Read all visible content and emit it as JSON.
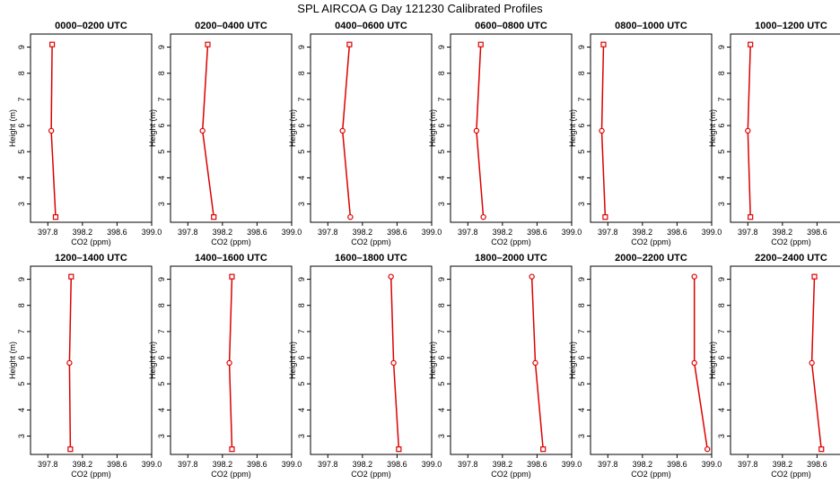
{
  "figure": {
    "title": "SPL AIRCOA G  Day 121230  Calibrated Profiles"
  },
  "chart_data": [
    {
      "type": "line",
      "title": "0000–0200 UTC",
      "xlabel": "CO2 (ppm)",
      "ylabel": "Height (m)",
      "xlim": [
        397.6,
        399.0
      ],
      "ylim": [
        2.3,
        9.5
      ],
      "xticks": [
        "397.8",
        "398.2",
        "398.6",
        "399.0"
      ],
      "yticks": [
        "3",
        "4",
        "5",
        "6",
        "7",
        "8",
        "9"
      ],
      "y": [
        2.5,
        5.8,
        9.1
      ],
      "x": [
        397.89,
        397.84,
        397.85
      ],
      "markers": [
        "square",
        "circle",
        "square"
      ],
      "color": "#dd0000",
      "grid": false
    },
    {
      "type": "line",
      "title": "0200–0400 UTC",
      "xlabel": "CO2 (ppm)",
      "ylabel": "Height (m)",
      "xlim": [
        397.6,
        399.0
      ],
      "ylim": [
        2.3,
        9.5
      ],
      "xticks": [
        "397.8",
        "398.2",
        "398.6",
        "399.0"
      ],
      "yticks": [
        "3",
        "4",
        "5",
        "6",
        "7",
        "8",
        "9"
      ],
      "y": [
        2.5,
        5.8,
        9.1
      ],
      "x": [
        398.1,
        397.97,
        398.03
      ],
      "markers": [
        "square",
        "circle",
        "square"
      ],
      "color": "#dd0000",
      "grid": false
    },
    {
      "type": "line",
      "title": "0400–0600 UTC",
      "xlabel": "CO2 (ppm)",
      "ylabel": "Height (m)",
      "xlim": [
        397.6,
        399.0
      ],
      "ylim": [
        2.3,
        9.5
      ],
      "xticks": [
        "397.8",
        "398.2",
        "398.6",
        "399.0"
      ],
      "yticks": [
        "3",
        "4",
        "5",
        "6",
        "7",
        "8",
        "9"
      ],
      "y": [
        2.5,
        5.8,
        9.1
      ],
      "x": [
        398.06,
        397.97,
        398.05
      ],
      "markers": [
        "circle",
        "circle",
        "square"
      ],
      "color": "#dd0000",
      "grid": false
    },
    {
      "type": "line",
      "title": "0600–0800 UTC",
      "xlabel": "CO2 (ppm)",
      "ylabel": "Height (m)",
      "xlim": [
        397.6,
        399.0
      ],
      "ylim": [
        2.3,
        9.5
      ],
      "xticks": [
        "397.8",
        "398.2",
        "398.6",
        "399.0"
      ],
      "yticks": [
        "3",
        "4",
        "5",
        "6",
        "7",
        "8",
        "9"
      ],
      "y": [
        2.5,
        5.8,
        9.1
      ],
      "x": [
        397.98,
        397.9,
        397.95
      ],
      "markers": [
        "circle",
        "circle",
        "square"
      ],
      "color": "#dd0000",
      "grid": false
    },
    {
      "type": "line",
      "title": "0800–1000 UTC",
      "xlabel": "CO2 (ppm)",
      "ylabel": "Height (m)",
      "xlim": [
        397.6,
        399.0
      ],
      "ylim": [
        2.3,
        9.5
      ],
      "xticks": [
        "397.8",
        "398.2",
        "398.6",
        "399.0"
      ],
      "yticks": [
        "3",
        "4",
        "5",
        "6",
        "7",
        "8",
        "9"
      ],
      "y": [
        2.5,
        5.8,
        9.1
      ],
      "x": [
        397.77,
        397.73,
        397.75
      ],
      "markers": [
        "square",
        "circle",
        "square"
      ],
      "color": "#dd0000",
      "grid": false
    },
    {
      "type": "line",
      "title": "1000–1200 UTC",
      "xlabel": "CO2 (ppm)",
      "ylabel": "Height (m)",
      "xlim": [
        397.6,
        399.0
      ],
      "ylim": [
        2.3,
        9.5
      ],
      "xticks": [
        "397.8",
        "398.2",
        "398.6",
        "399.0"
      ],
      "yticks": [
        "3",
        "4",
        "5",
        "6",
        "7",
        "8",
        "9"
      ],
      "y": [
        2.5,
        5.8,
        9.1
      ],
      "x": [
        397.83,
        397.8,
        397.83
      ],
      "markers": [
        "square",
        "circle",
        "square"
      ],
      "color": "#dd0000",
      "grid": false
    },
    {
      "type": "line",
      "title": "1200–1400 UTC",
      "xlabel": "CO2 (ppm)",
      "ylabel": "Height (m)",
      "xlim": [
        397.6,
        399.0
      ],
      "ylim": [
        2.3,
        9.5
      ],
      "xticks": [
        "397.8",
        "398.2",
        "398.6",
        "399.0"
      ],
      "yticks": [
        "3",
        "4",
        "5",
        "6",
        "7",
        "8",
        "9"
      ],
      "y": [
        2.5,
        5.8,
        9.1
      ],
      "x": [
        398.06,
        398.05,
        398.07
      ],
      "markers": [
        "square",
        "circle",
        "square"
      ],
      "color": "#dd0000",
      "grid": false
    },
    {
      "type": "line",
      "title": "1400–1600 UTC",
      "xlabel": "CO2 (ppm)",
      "ylabel": "Height (m)",
      "xlim": [
        397.6,
        399.0
      ],
      "ylim": [
        2.3,
        9.5
      ],
      "xticks": [
        "397.8",
        "398.2",
        "398.6",
        "399.0"
      ],
      "yticks": [
        "3",
        "4",
        "5",
        "6",
        "7",
        "8",
        "9"
      ],
      "y": [
        2.5,
        5.8,
        9.1
      ],
      "x": [
        398.31,
        398.28,
        398.31
      ],
      "markers": [
        "square",
        "circle",
        "square"
      ],
      "color": "#dd0000",
      "grid": false
    },
    {
      "type": "line",
      "title": "1600–1800 UTC",
      "xlabel": "CO2 (ppm)",
      "ylabel": "Height (m)",
      "xlim": [
        397.6,
        399.0
      ],
      "ylim": [
        2.3,
        9.5
      ],
      "xticks": [
        "397.8",
        "398.2",
        "398.6",
        "399.0"
      ],
      "yticks": [
        "3",
        "4",
        "5",
        "6",
        "7",
        "8",
        "9"
      ],
      "y": [
        2.5,
        5.8,
        9.1
      ],
      "x": [
        398.62,
        398.56,
        398.53
      ],
      "markers": [
        "square",
        "circle",
        "circle"
      ],
      "color": "#dd0000",
      "grid": false
    },
    {
      "type": "line",
      "title": "1800–2000 UTC",
      "xlabel": "CO2 (ppm)",
      "ylabel": "Height (m)",
      "xlim": [
        397.6,
        399.0
      ],
      "ylim": [
        2.3,
        9.5
      ],
      "xticks": [
        "397.8",
        "398.2",
        "398.6",
        "399.0"
      ],
      "yticks": [
        "3",
        "4",
        "5",
        "6",
        "7",
        "8",
        "9"
      ],
      "y": [
        2.5,
        5.8,
        9.1
      ],
      "x": [
        398.67,
        398.58,
        398.54
      ],
      "markers": [
        "square",
        "circle",
        "circle"
      ],
      "color": "#dd0000",
      "grid": false
    },
    {
      "type": "line",
      "title": "2000–2200 UTC",
      "xlabel": "CO2 (ppm)",
      "ylabel": "Height (m)",
      "xlim": [
        397.6,
        399.0
      ],
      "ylim": [
        2.3,
        9.5
      ],
      "xticks": [
        "397.8",
        "398.2",
        "398.6",
        "399.0"
      ],
      "yticks": [
        "3",
        "4",
        "5",
        "6",
        "7",
        "8",
        "9"
      ],
      "y": [
        2.5,
        5.8,
        9.1
      ],
      "x": [
        398.95,
        398.8,
        398.8
      ],
      "markers": [
        "circle",
        "circle",
        "circle"
      ],
      "color": "#dd0000",
      "grid": false
    },
    {
      "type": "line",
      "title": "2200–2400 UTC",
      "xlabel": "CO2 (ppm)",
      "ylabel": "Height (m)",
      "xlim": [
        397.6,
        399.0
      ],
      "ylim": [
        2.3,
        9.5
      ],
      "xticks": [
        "397.8",
        "398.2",
        "398.6",
        "399.0"
      ],
      "yticks": [
        "3",
        "4",
        "5",
        "6",
        "7",
        "8",
        "9"
      ],
      "y": [
        2.5,
        5.8,
        9.1
      ],
      "x": [
        398.65,
        398.54,
        398.57
      ],
      "markers": [
        "square",
        "circle",
        "square"
      ],
      "color": "#dd0000",
      "grid": false
    }
  ]
}
